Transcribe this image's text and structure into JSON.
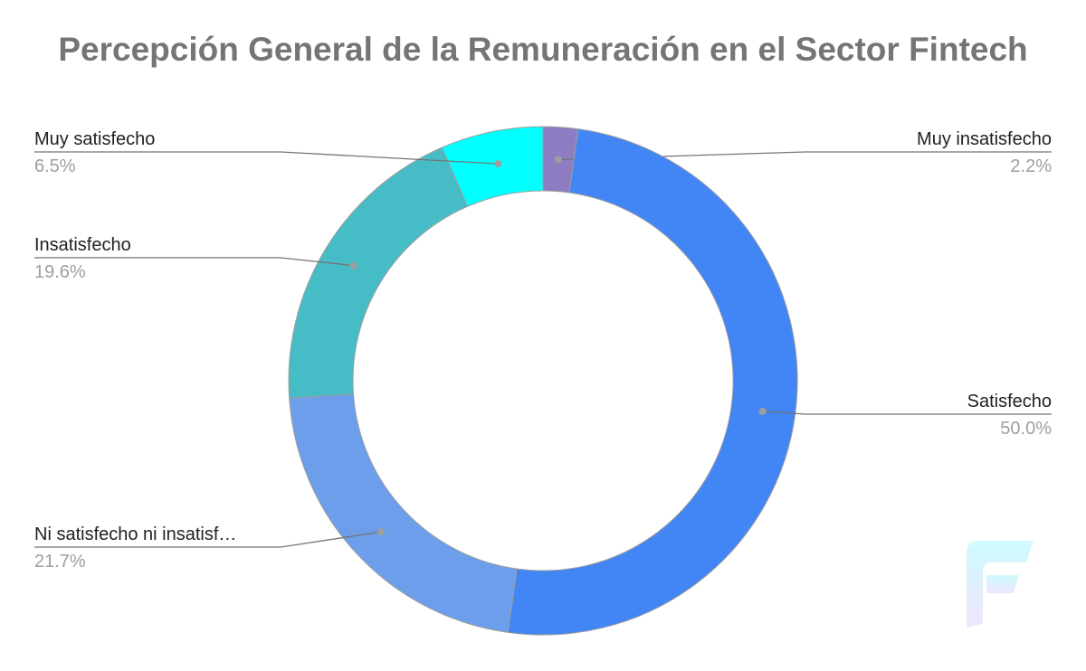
{
  "chart_data": {
    "type": "donut",
    "title": "Percepción General de la Remuneración en el Sector Fintech",
    "categories": [
      "Muy insatisfecho",
      "Satisfecho",
      "Ni satisfecho ni insatisf…",
      "Insatisfecho",
      "Muy satisfecho"
    ],
    "values": [
      2.2,
      50.0,
      21.7,
      19.6,
      6.5
    ],
    "value_labels": [
      "2.2%",
      "50.0%",
      "21.7%",
      "19.6%",
      "6.5%"
    ],
    "colors": [
      "#8e7cc3",
      "#4285f4",
      "#6d9eeb",
      "#46bdc6",
      "#00ffff"
    ]
  }
}
